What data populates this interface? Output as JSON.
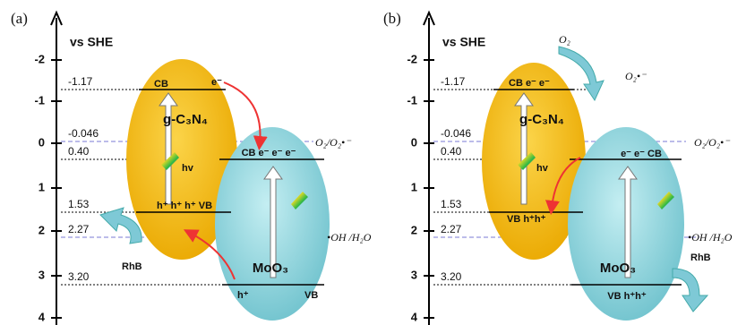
{
  "panels": [
    {
      "label": "(a)",
      "axis_title": "vs SHE",
      "ticks": [
        "-2",
        "-1",
        "0",
        "1",
        "2",
        "3",
        "4"
      ],
      "levels": [
        "-1.17",
        "-0.046",
        "0.40",
        "1.53",
        "2.27",
        "3.20"
      ],
      "redox": [
        "O₂/O₂•⁻",
        "•OH /H₂O"
      ],
      "gcn": {
        "name": "g-C₃N₄",
        "cb": [
          "CB",
          "e⁻"
        ],
        "vb": "h⁺ h⁺ h⁺ VB",
        "light": "hv"
      },
      "moo3": {
        "name": "MoO₃",
        "cb": "CB e⁻ e⁻ e⁻",
        "vb": [
          "h⁺",
          "VB"
        ]
      },
      "rhb": "RhB"
    },
    {
      "label": "(b)",
      "axis_title": "vs SHE",
      "ticks": [
        "-2",
        "-1",
        "0",
        "1",
        "2",
        "3",
        "4"
      ],
      "levels": [
        "-1.17",
        "-0.046",
        "0.40",
        "1.53",
        "2.27",
        "3.20"
      ],
      "redox": [
        "O₂/O₂•⁻",
        "•OH /H₂O"
      ],
      "oxygen": [
        "O₂",
        "O₂•⁻"
      ],
      "gcn": {
        "name": "g-C₃N₄",
        "cb": [
          "CB e⁻ e⁻"
        ],
        "vb": "VB h⁺h⁺",
        "light": "hv"
      },
      "moo3": {
        "name": "MoO₃",
        "cb": "e⁻ e⁻ CB",
        "vb": [
          "VB h⁺h⁺"
        ]
      },
      "rhb": "RhB"
    }
  ]
}
